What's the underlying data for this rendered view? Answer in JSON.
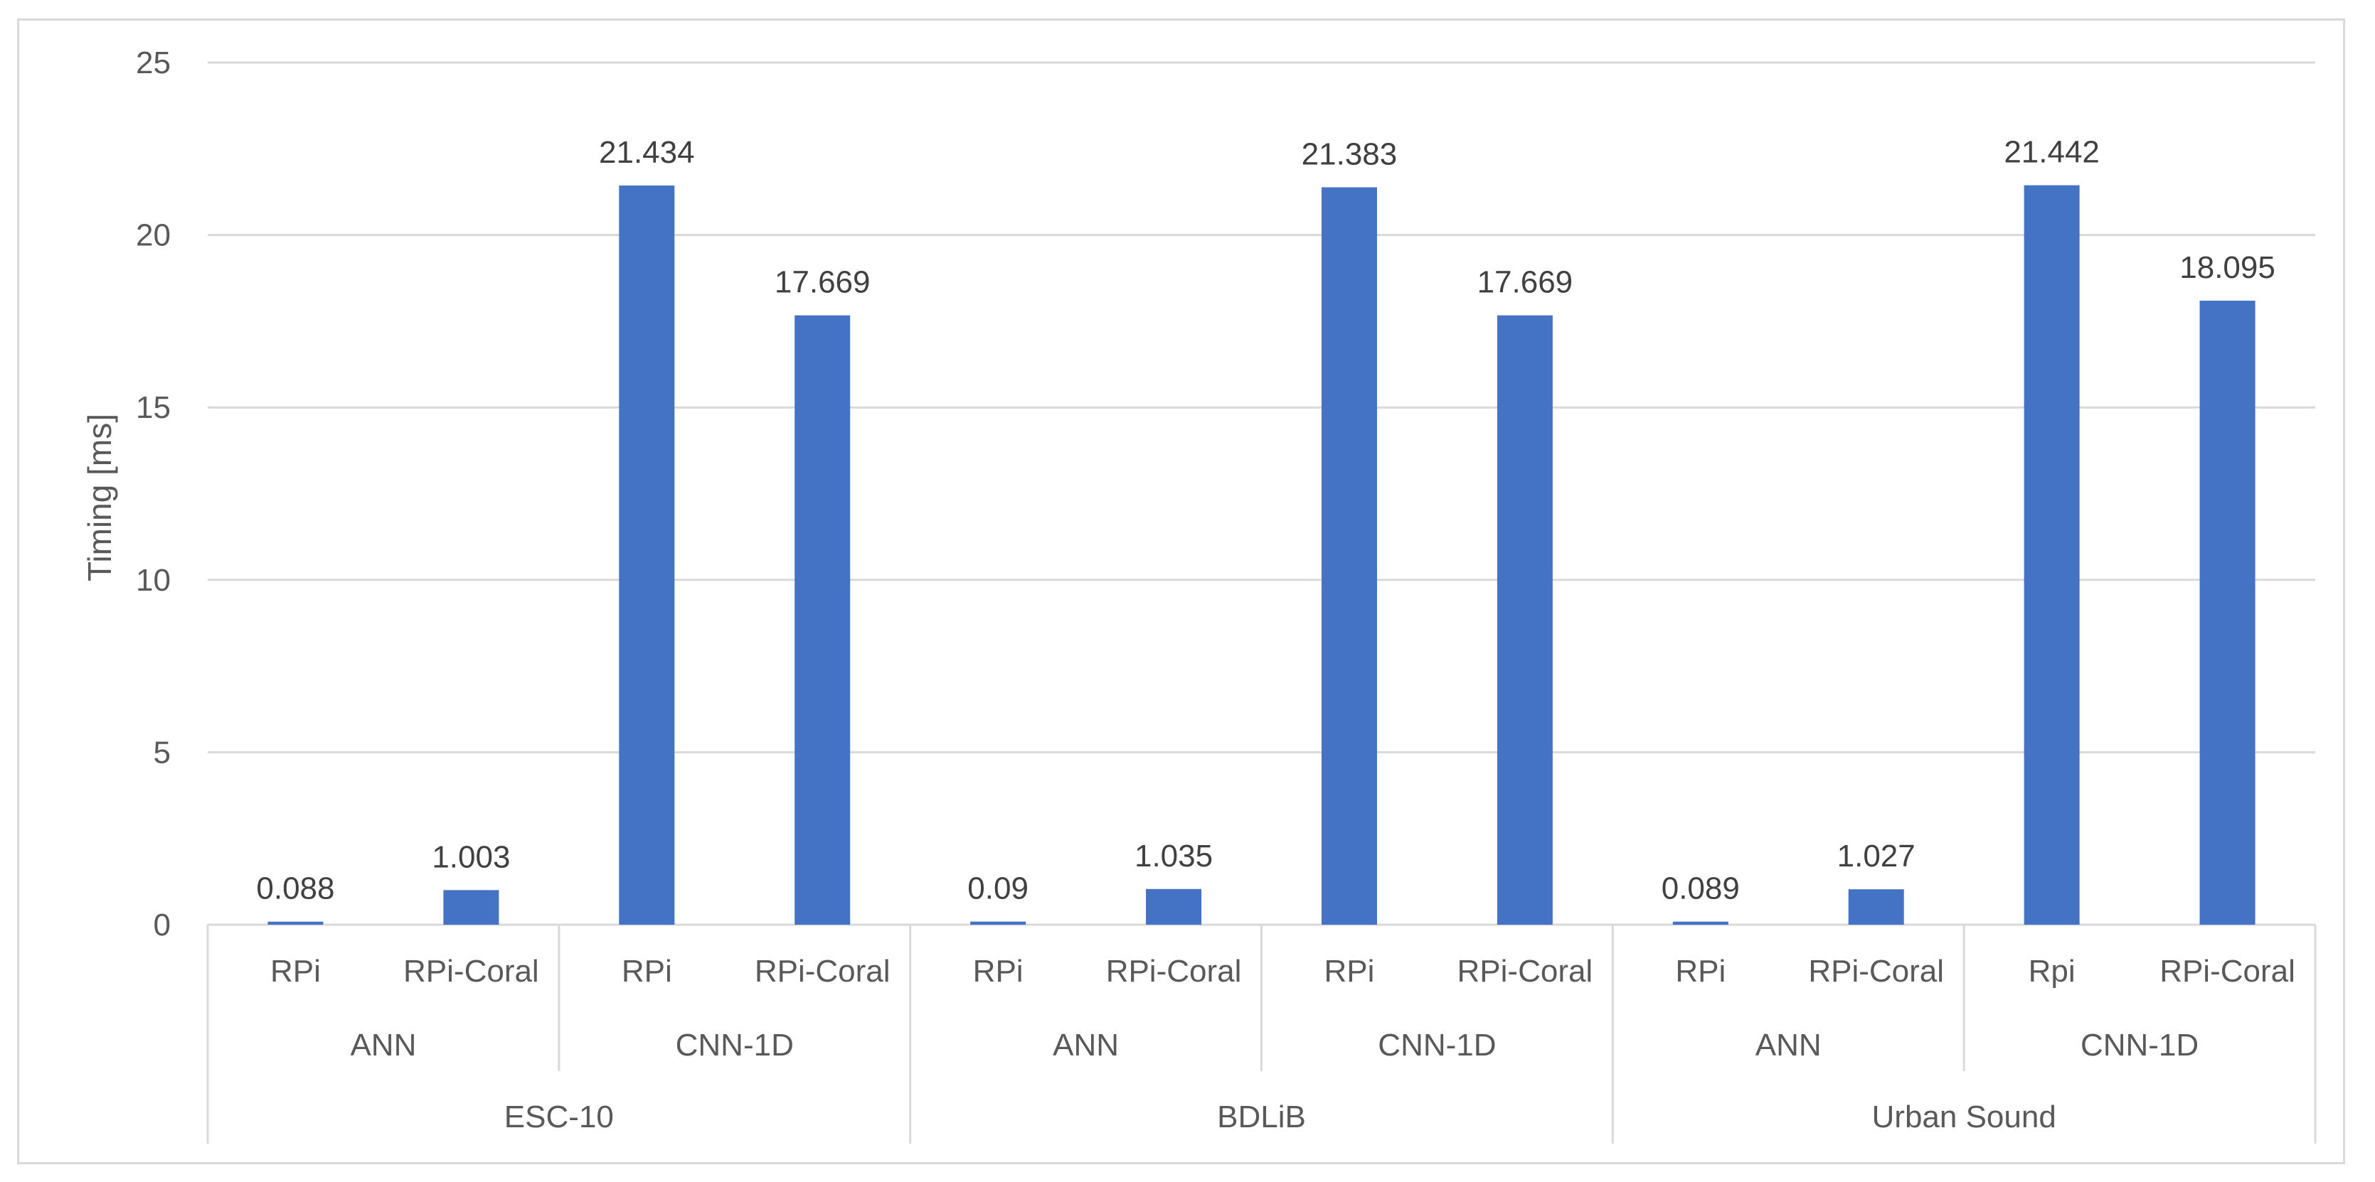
{
  "chart_data": {
    "type": "bar",
    "title": "",
    "ylabel": "Timing [ms]",
    "xlabel": "",
    "ylim": [
      0,
      25
    ],
    "yticks": [
      0,
      5,
      10,
      15,
      20,
      25
    ],
    "ytick_labels": [
      "0",
      "5",
      "10",
      "15",
      "20",
      "25"
    ],
    "grid": true,
    "legend": "none",
    "bar_color": "#4472c4",
    "categories": [
      "RPi",
      "RPi-Coral",
      "RPi",
      "RPi-Coral",
      "RPi",
      "RPi-Coral",
      "RPi",
      "RPi-Coral",
      "RPi",
      "RPi-Coral",
      "Rpi",
      "RPi-Coral"
    ],
    "values": [
      0.088,
      1.003,
      21.434,
      17.669,
      0.09,
      1.035,
      21.383,
      17.669,
      0.089,
      1.027,
      21.442,
      18.095
    ],
    "data_labels": [
      "0.088",
      "1.003",
      "21.434",
      "17.669",
      "0.09",
      "1.035",
      "21.383",
      "17.669",
      "0.089",
      "1.027",
      "21.442",
      "18.095"
    ],
    "models": [
      "ANN",
      "CNN-1D",
      "ANN",
      "CNN-1D",
      "ANN",
      "CNN-1D"
    ],
    "datasets": [
      "ESC-10",
      "BDLiB",
      "Urban Sound"
    ]
  }
}
